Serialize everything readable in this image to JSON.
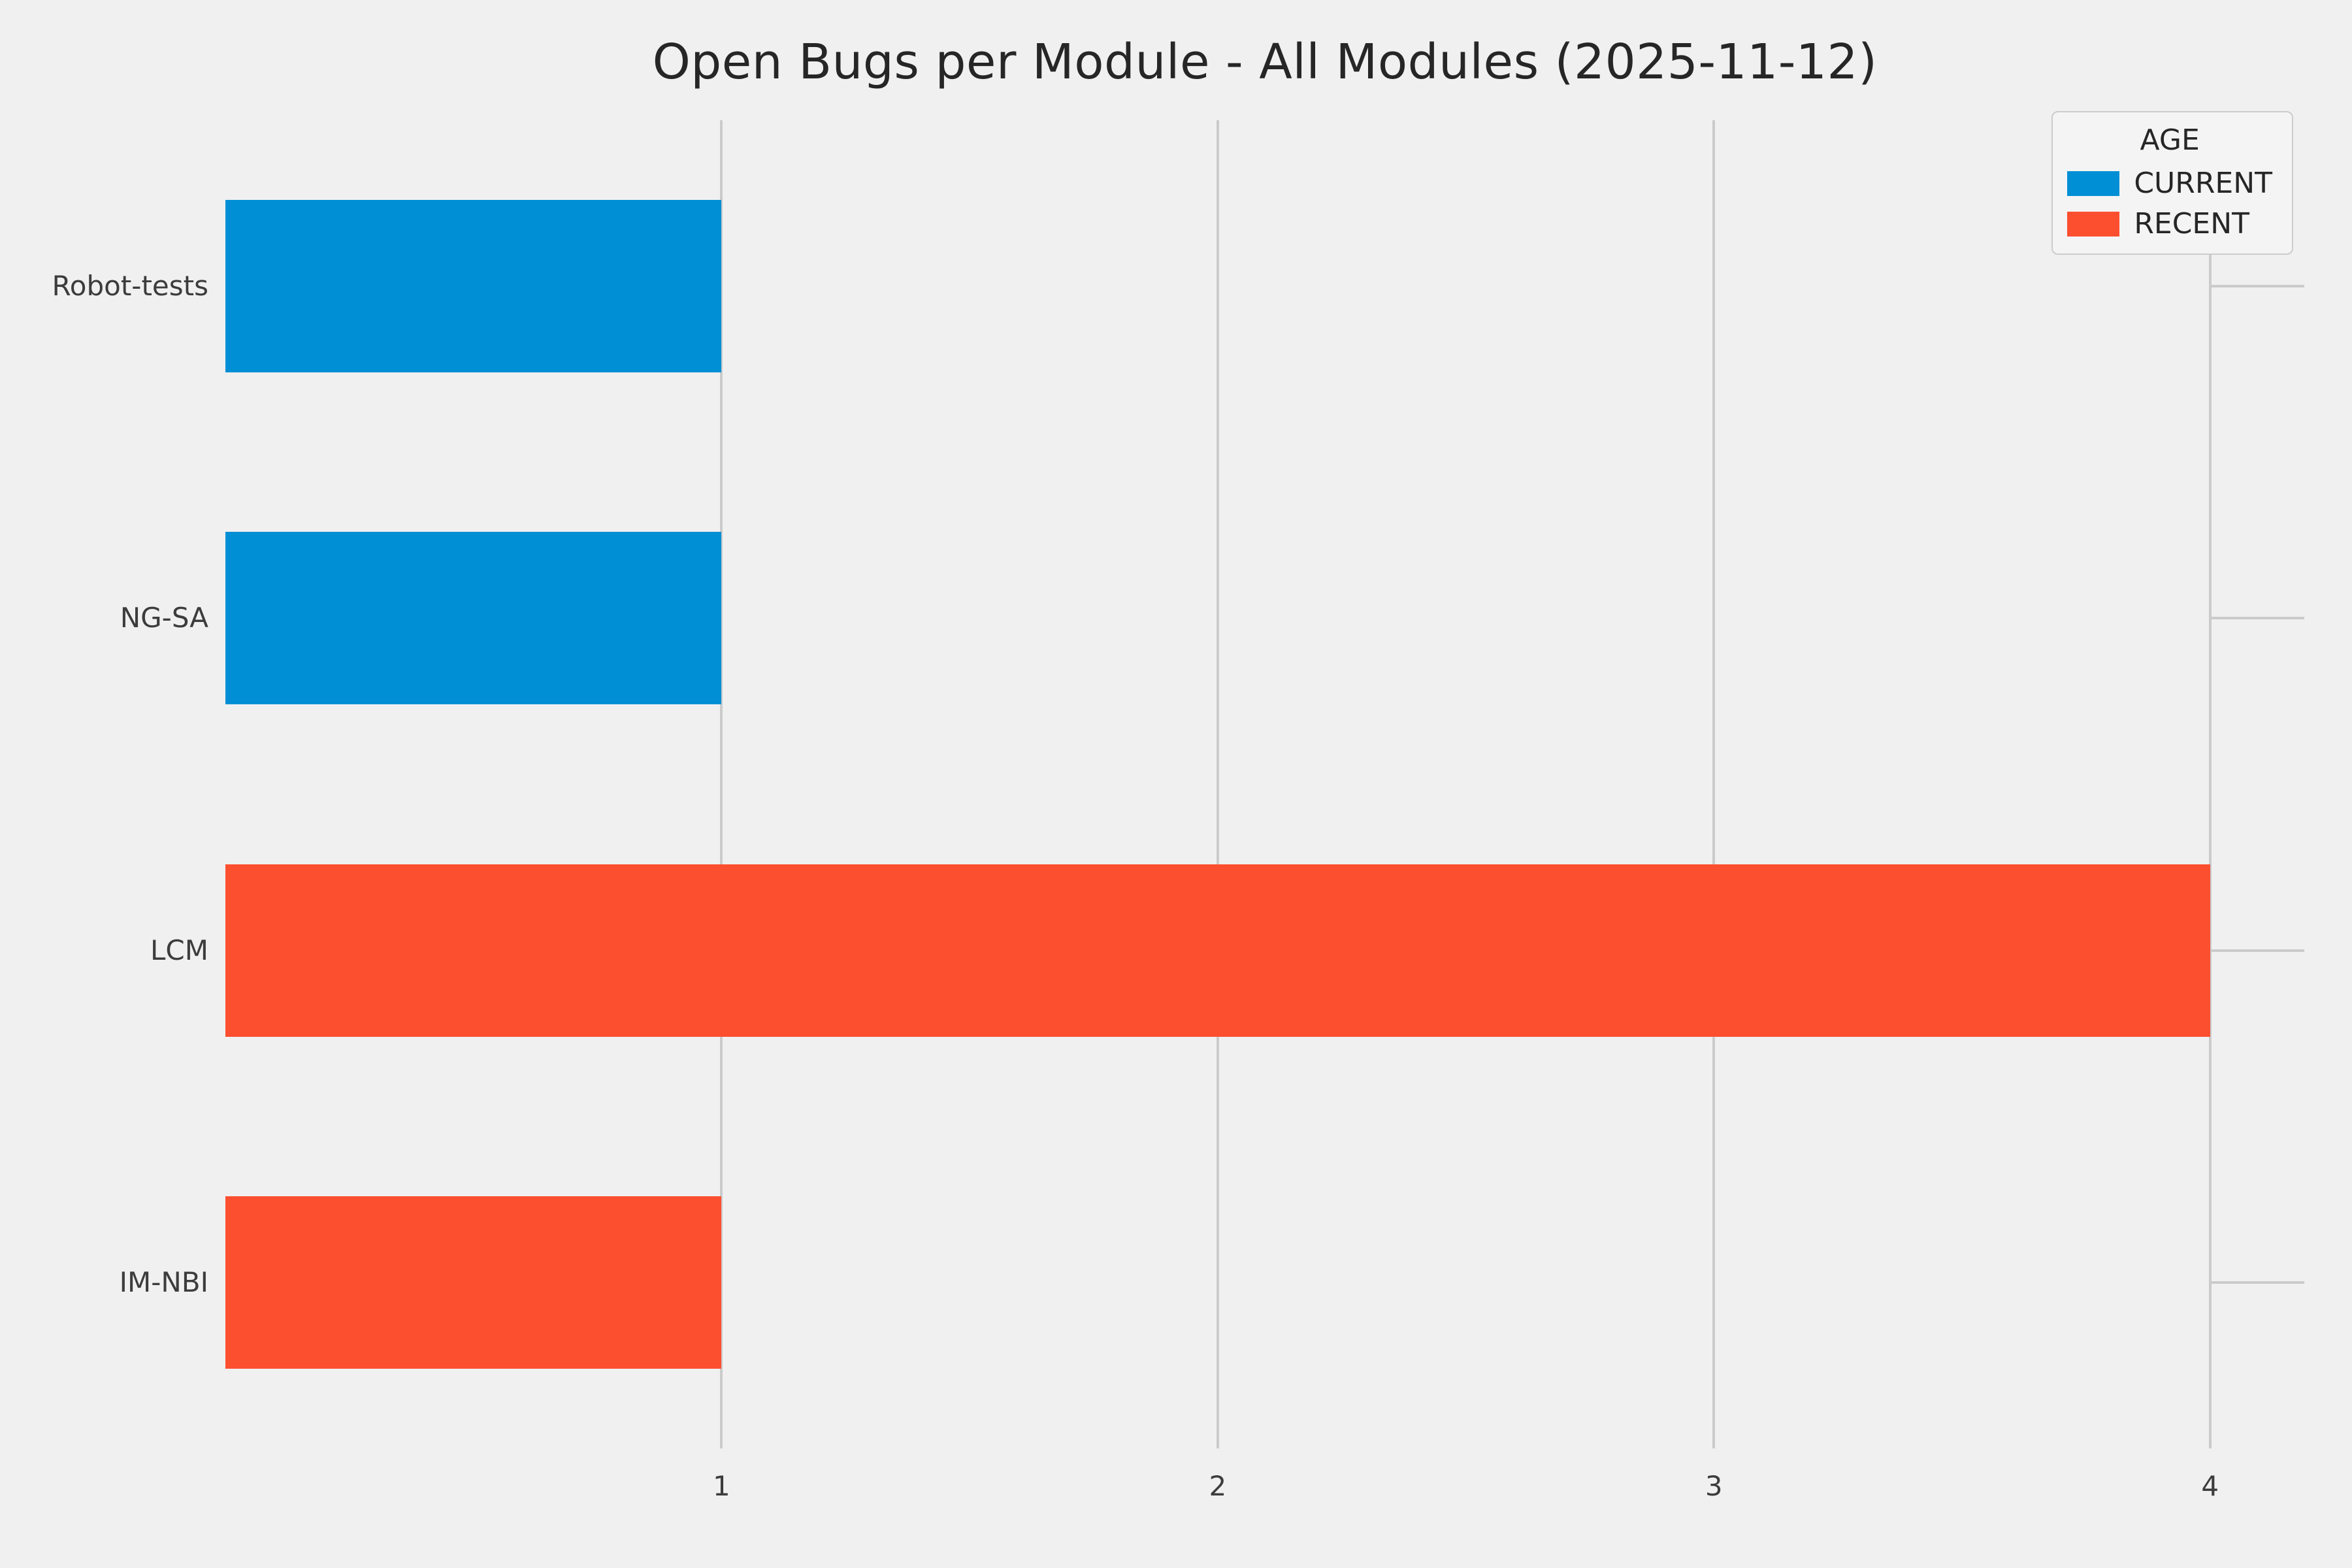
{
  "title": "Open Bugs per Module - All Modules (2025-11-12)",
  "colors": {
    "background": "#f0f0f0",
    "grid": "#cbcbcb",
    "title_text": "#262626",
    "tick_text": "#3c3c3c",
    "current": "#008fd5",
    "recent": "#fc4f30"
  },
  "chart_data": {
    "type": "bar",
    "orientation": "horizontal",
    "title": "Open Bugs per Module - All Modules (2025-11-12)",
    "categories": [
      "Robot-tests",
      "NG-SA",
      "LCM",
      "IM-NBI"
    ],
    "values": [
      1,
      1,
      4,
      1
    ],
    "series_by_bar": [
      "CURRENT",
      "CURRENT",
      "RECENT",
      "RECENT"
    ],
    "x_ticks": [
      "1",
      "2",
      "3",
      "4"
    ],
    "xlim": [
      0,
      4.19
    ],
    "xlabel": "",
    "ylabel": "",
    "grid": true,
    "bar_fraction_of_band": 0.52,
    "legend": {
      "title": "AGE",
      "position": "upper right",
      "entries": [
        {
          "label": "CURRENT",
          "color": "#008fd5"
        },
        {
          "label": "RECENT",
          "color": "#fc4f30"
        }
      ]
    }
  }
}
